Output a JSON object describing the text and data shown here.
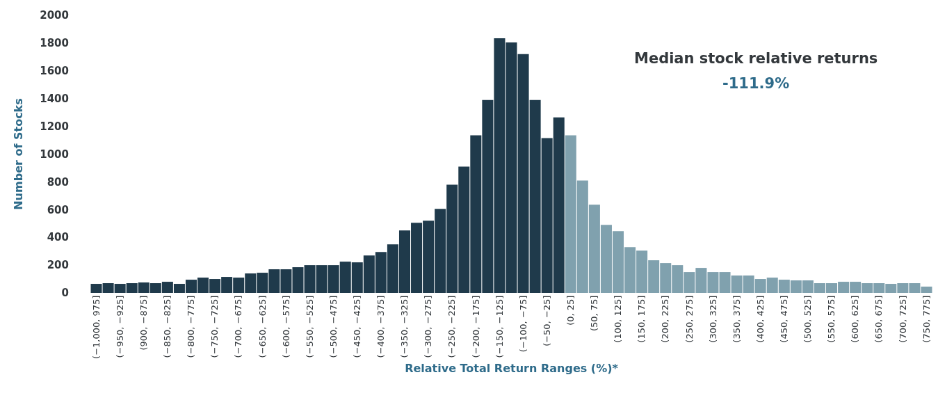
{
  "chart_data": {
    "type": "bar",
    "xlabel": "Relative Total Return Ranges (%)*",
    "ylabel": "Number of Stocks",
    "annotations": [
      "Median stock relative returns",
      "-111.9%"
    ],
    "categories": [
      "(−1,000, 975]",
      null,
      "(−950, −925]",
      null,
      "(900, −875]",
      null,
      "(−850, −825]",
      null,
      "(−800, −775]",
      null,
      "(−750, −725]",
      null,
      "(−700, −675]",
      null,
      "(−650, −625]",
      null,
      "(−600, −575]",
      null,
      "(−550, −525]",
      null,
      "(−500, −475]",
      null,
      "(−450, −425]",
      null,
      "(−400, −375]",
      null,
      "(−350, −325]",
      null,
      "(−300, −275]",
      null,
      "(−250, −225]",
      null,
      "(−200, −175]",
      null,
      "(−150, −125]",
      null,
      "(−100, −75]",
      null,
      "(−50, −25]",
      null,
      "(0, 25]",
      null,
      "(50, 75]",
      null,
      "(100, 125]",
      null,
      "(150, 175]",
      null,
      "(200, 225]",
      null,
      "(250, 275]",
      null,
      "(300, 325]",
      null,
      "(350, 375]",
      null,
      "(400, 425]",
      null,
      "(450, 475]",
      null,
      "(500, 525]",
      null,
      "(550, 575]",
      null,
      "(600, 625]",
      null,
      "(650, 675]",
      null,
      "(700, 725]",
      null,
      "(750, 775]"
    ],
    "values": [
      65,
      70,
      65,
      70,
      75,
      70,
      80,
      65,
      95,
      110,
      100,
      115,
      110,
      140,
      145,
      170,
      170,
      185,
      200,
      200,
      200,
      225,
      220,
      270,
      295,
      350,
      450,
      505,
      520,
      605,
      780,
      910,
      1135,
      1390,
      1835,
      1805,
      1720,
      1390,
      1115,
      1265,
      1135,
      810,
      635,
      490,
      445,
      330,
      305,
      235,
      215,
      200,
      150,
      180,
      150,
      150,
      125,
      125,
      100,
      110,
      95,
      90,
      90,
      70,
      70,
      80,
      80,
      70,
      70,
      65,
      70,
      70,
      45
    ],
    "colors": [
      "#1f3a4b",
      "#1f3a4b",
      "#1f3a4b",
      "#1f3a4b",
      "#1f3a4b",
      "#1f3a4b",
      "#1f3a4b",
      "#1f3a4b",
      "#1f3a4b",
      "#1f3a4b",
      "#1f3a4b",
      "#1f3a4b",
      "#1f3a4b",
      "#1f3a4b",
      "#1f3a4b",
      "#1f3a4b",
      "#1f3a4b",
      "#1f3a4b",
      "#1f3a4b",
      "#1f3a4b",
      "#1f3a4b",
      "#1f3a4b",
      "#1f3a4b",
      "#1f3a4b",
      "#1f3a4b",
      "#1f3a4b",
      "#1f3a4b",
      "#1f3a4b",
      "#1f3a4b",
      "#1f3a4b",
      "#1f3a4b",
      "#1f3a4b",
      "#1f3a4b",
      "#1f3a4b",
      "#1f3a4b",
      "#1f3a4b",
      "#1f3a4b",
      "#1f3a4b",
      "#1f3a4b",
      "#1f3a4b",
      "#80a1ae",
      "#80a1ae",
      "#80a1ae",
      "#80a1ae",
      "#80a1ae",
      "#80a1ae",
      "#80a1ae",
      "#80a1ae",
      "#80a1ae",
      "#80a1ae",
      "#80a1ae",
      "#80a1ae",
      "#80a1ae",
      "#80a1ae",
      "#80a1ae",
      "#80a1ae",
      "#80a1ae",
      "#80a1ae",
      "#80a1ae",
      "#80a1ae",
      "#80a1ae",
      "#80a1ae",
      "#80a1ae",
      "#80a1ae",
      "#80a1ae",
      "#80a1ae",
      "#80a1ae",
      "#80a1ae",
      "#80a1ae",
      "#80a1ae",
      "#80a1ae"
    ],
    "ylim": [
      0,
      2000
    ],
    "yticks": [
      0,
      200,
      400,
      600,
      800,
      1000,
      1200,
      1400,
      1600,
      1800,
      2000
    ],
    "grid": false
  }
}
